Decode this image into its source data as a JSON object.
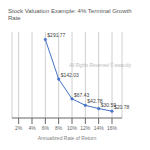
{
  "chart_data": {
    "type": "line",
    "title": "Stock Valuation Example: 4% Terminal Growth Rate",
    "x": [
      6,
      8,
      10,
      12,
      14,
      16
    ],
    "values": [
      291.77,
      142.03,
      67.43,
      42.78,
      30.59,
      20.78
    ],
    "value_labels": [
      "$291.77",
      "$142.03",
      "$67.43",
      "$42.78",
      "$30.59",
      "$20.78"
    ],
    "data_labels": true,
    "xlabel": "Annualized Rate of Return",
    "color": "#4472C4",
    "marker": "circle",
    "annotations": [
      "All Rights Reserved © www.diy"
    ],
    "xlim": [
      1,
      17.5
    ],
    "ylim": [
      -5,
      320
    ],
    "xticks": [
      {
        "value": 2,
        "label": "2%"
      },
      {
        "value": 4,
        "label": "4%"
      },
      {
        "value": 6,
        "label": "6%"
      },
      {
        "value": 8,
        "label": "8%"
      },
      {
        "value": 10,
        "label": "10%"
      },
      {
        "value": 12,
        "label": "12%"
      },
      {
        "value": 14,
        "label": "14%"
      },
      {
        "value": 16,
        "label": "16%"
      }
    ],
    "grid": "x",
    "tick_labels": "x"
  }
}
